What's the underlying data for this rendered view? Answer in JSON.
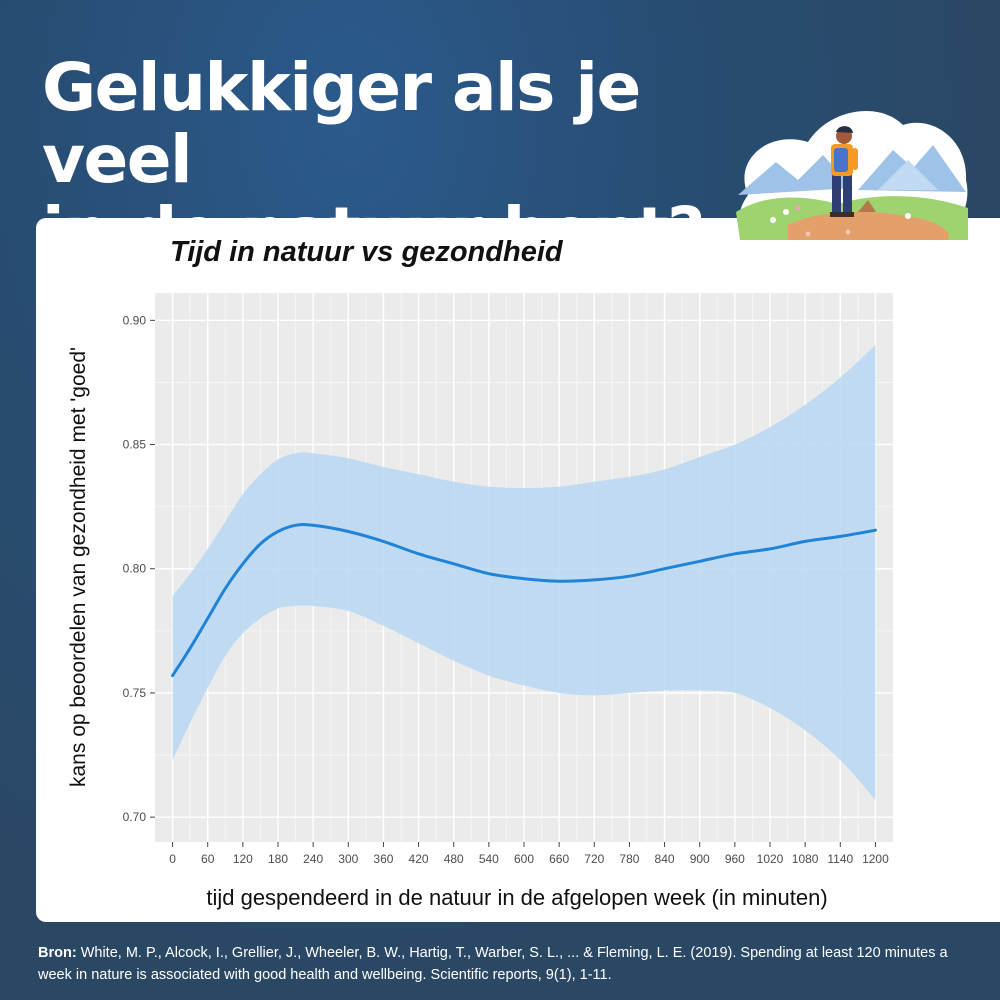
{
  "header": {
    "title_line1": "Gelukkiger als je veel",
    "title_line2": "in de natuur bent?"
  },
  "illustration": {
    "icon": "hiker-nature-icon"
  },
  "chart_data": {
    "type": "line",
    "title": "Tijd in natuur vs gezondheid",
    "xlabel": "tijd gespendeerd in de natuur in de afgelopen week (in minuten)",
    "ylabel": "kans op beoordelen van gezondheid met 'goed'",
    "xlim": [
      -30,
      1230
    ],
    "ylim": [
      0.69,
      0.911
    ],
    "xticks": [
      0,
      60,
      120,
      180,
      240,
      300,
      360,
      420,
      480,
      540,
      600,
      660,
      720,
      780,
      840,
      900,
      960,
      1020,
      1080,
      1140,
      1200
    ],
    "yticks": [
      0.7,
      0.75,
      0.8,
      0.85,
      0.9
    ],
    "ytick_labels": [
      "0.70",
      "0.75",
      "0.80",
      "0.85",
      "0.90"
    ],
    "grid": true,
    "x": [
      0,
      30,
      60,
      90,
      120,
      150,
      180,
      210,
      240,
      300,
      360,
      420,
      480,
      540,
      600,
      660,
      720,
      780,
      840,
      900,
      960,
      1020,
      1080,
      1140,
      1200
    ],
    "series": [
      {
        "values": [
          0.757,
          0.768,
          0.78,
          0.792,
          0.802,
          0.81,
          0.815,
          0.8175,
          0.8175,
          0.815,
          0.811,
          0.806,
          0.802,
          0.798,
          0.796,
          0.795,
          0.7955,
          0.797,
          0.8,
          0.803,
          0.806,
          0.808,
          0.811,
          0.813,
          0.8155
        ],
        "lower": [
          0.723,
          0.738,
          0.752,
          0.765,
          0.774,
          0.78,
          0.784,
          0.785,
          0.785,
          0.783,
          0.777,
          0.77,
          0.763,
          0.757,
          0.753,
          0.75,
          0.749,
          0.75,
          0.751,
          0.751,
          0.75,
          0.744,
          0.735,
          0.723,
          0.707
        ],
        "upper": [
          0.789,
          0.798,
          0.808,
          0.819,
          0.83,
          0.838,
          0.844,
          0.8465,
          0.8465,
          0.8445,
          0.841,
          0.838,
          0.835,
          0.833,
          0.8325,
          0.833,
          0.835,
          0.837,
          0.84,
          0.845,
          0.85,
          0.857,
          0.866,
          0.877,
          0.89
        ]
      }
    ],
    "colors": {
      "line": "#1f83d8",
      "band": "#b9d7f2",
      "panel": "#ebebeb",
      "grid": "#ffffff"
    }
  },
  "source": {
    "label": "Bron:",
    "text": "White, M. P., Alcock, I., Grellier, J., Wheeler, B. W., Hartig, T., Warber, S. L., ... & Fleming, L. E. (2019). Spending at least 120 minutes a week in nature is associated with good health and wellbeing. Scientific reports, 9(1), 1-11."
  }
}
